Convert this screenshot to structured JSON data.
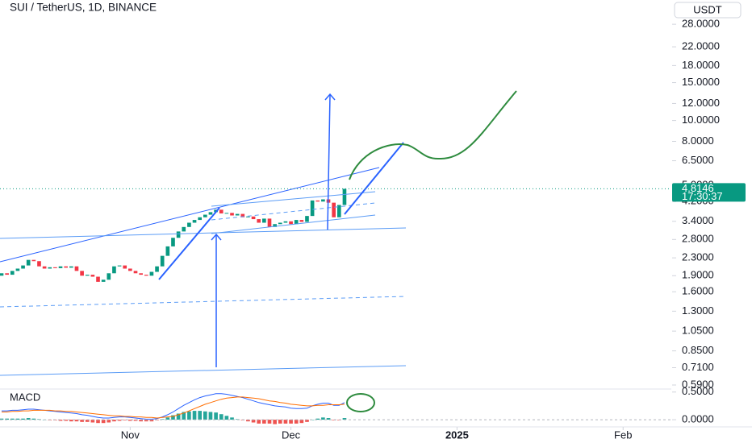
{
  "chart_data": {
    "type": "candlestick",
    "title": "SUI / TetherUS, 1D, BINANCE",
    "currency": "USDT",
    "log_scale": true,
    "up_color": "#089981",
    "down_color": "#f23645",
    "open": [
      1.9,
      1.95,
      1.92,
      2.0,
      2.05,
      2.12,
      2.25,
      2.22,
      2.1,
      2.05,
      2.08,
      2.06,
      2.1,
      2.07,
      2.1,
      2.0,
      1.9,
      1.92,
      1.88,
      1.78,
      1.82,
      1.95,
      2.1,
      2.12,
      2.05,
      2.0,
      1.95,
      1.92,
      1.9,
      1.98,
      2.1,
      2.35,
      2.6,
      2.85,
      3.05,
      3.2,
      3.35,
      3.45,
      3.55,
      3.65,
      3.75,
      3.85,
      3.7,
      3.72,
      3.62,
      3.68,
      3.55,
      3.58,
      3.48,
      3.35,
      3.5,
      3.2,
      3.3,
      3.35,
      3.4,
      3.3,
      3.45,
      3.38,
      3.6,
      4.25,
      4.2,
      4.3,
      4.15,
      3.55,
      4.05
    ],
    "close": [
      1.95,
      1.92,
      2.0,
      2.05,
      2.12,
      2.25,
      2.22,
      2.1,
      2.05,
      2.08,
      2.06,
      2.1,
      2.07,
      2.1,
      2.0,
      1.9,
      1.92,
      1.88,
      1.78,
      1.82,
      1.95,
      2.1,
      2.12,
      2.05,
      2.0,
      1.95,
      1.92,
      1.9,
      1.98,
      2.1,
      2.35,
      2.6,
      2.85,
      3.05,
      3.2,
      3.35,
      3.45,
      3.55,
      3.65,
      3.75,
      3.85,
      3.7,
      3.72,
      3.62,
      3.68,
      3.55,
      3.58,
      3.48,
      3.35,
      3.5,
      3.2,
      3.3,
      3.35,
      3.4,
      3.3,
      3.45,
      3.38,
      3.6,
      4.25,
      4.2,
      4.3,
      4.15,
      3.55,
      4.05,
      4.8146
    ],
    "last_price": 4.8146,
    "countdown": "17:30:37",
    "ylim": [
      0.57,
      36.3
    ],
    "yticks": [
      {
        "value": 28,
        "label": "28.0000"
      },
      {
        "value": 22,
        "label": "22.0000"
      },
      {
        "value": 18,
        "label": "18.0000"
      },
      {
        "value": 15,
        "label": "15.0000"
      },
      {
        "value": 12,
        "label": "12.0000"
      },
      {
        "value": 10,
        "label": "10.0000"
      },
      {
        "value": 8,
        "label": "8.0000"
      },
      {
        "value": 6.5,
        "label": "6.5000"
      },
      {
        "value": 5,
        "label": "5.0000"
      },
      {
        "value": 4.2,
        "label": "4.2000"
      },
      {
        "value": 3.4,
        "label": "3.4000"
      },
      {
        "value": 2.8,
        "label": "2.8000"
      },
      {
        "value": 2.3,
        "label": "2.3000"
      },
      {
        "value": 1.9,
        "label": "1.9000"
      },
      {
        "value": 1.6,
        "label": "1.6000"
      },
      {
        "value": 1.3,
        "label": "1.3000"
      },
      {
        "value": 1.05,
        "label": "1.0500"
      },
      {
        "value": 0.85,
        "label": "0.8500"
      },
      {
        "value": 0.71,
        "label": "0.7100"
      },
      {
        "value": 0.59,
        "label": "0.5900"
      }
    ],
    "xlim": [
      0,
      125
    ],
    "xticks": [
      {
        "value": 24,
        "label": "Nov"
      },
      {
        "value": 54,
        "label": "Dec"
      },
      {
        "value": 85,
        "label": "2025"
      },
      {
        "value": 116,
        "label": "Feb"
      }
    ],
    "macd": {
      "label": "MACD",
      "ylim": [
        -0.13,
        0.54
      ],
      "yticks": [
        {
          "value": 0.5,
          "label": "0.5000"
        },
        {
          "value": 0,
          "label": "0.0000"
        }
      ],
      "macd_color": "#2962ff",
      "signal_color": "#ff6d00",
      "macd": [
        0.16,
        0.16,
        0.17,
        0.17,
        0.18,
        0.19,
        0.19,
        0.18,
        0.17,
        0.16,
        0.15,
        0.14,
        0.13,
        0.12,
        0.11,
        0.09,
        0.08,
        0.06,
        0.04,
        0.03,
        0.03,
        0.04,
        0.05,
        0.05,
        0.04,
        0.03,
        0.02,
        0.01,
        0.01,
        0.02,
        0.05,
        0.09,
        0.14,
        0.2,
        0.26,
        0.31,
        0.36,
        0.4,
        0.43,
        0.45,
        0.47,
        0.47,
        0.46,
        0.44,
        0.42,
        0.4,
        0.37,
        0.34,
        0.31,
        0.29,
        0.27,
        0.25,
        0.24,
        0.23,
        0.21,
        0.2,
        0.2,
        0.21,
        0.25,
        0.28,
        0.3,
        0.3,
        0.26,
        0.26,
        0.31
      ],
      "signal": [
        0.14,
        0.14,
        0.15,
        0.15,
        0.16,
        0.16,
        0.17,
        0.17,
        0.17,
        0.17,
        0.16,
        0.16,
        0.15,
        0.15,
        0.14,
        0.13,
        0.12,
        0.11,
        0.1,
        0.09,
        0.08,
        0.07,
        0.07,
        0.06,
        0.06,
        0.05,
        0.05,
        0.04,
        0.04,
        0.03,
        0.04,
        0.05,
        0.06,
        0.09,
        0.12,
        0.16,
        0.2,
        0.24,
        0.28,
        0.31,
        0.34,
        0.37,
        0.39,
        0.4,
        0.41,
        0.41,
        0.4,
        0.39,
        0.38,
        0.36,
        0.34,
        0.33,
        0.31,
        0.3,
        0.28,
        0.27,
        0.26,
        0.25,
        0.25,
        0.26,
        0.26,
        0.27,
        0.27,
        0.27,
        0.28
      ],
      "histogram": [
        0.02,
        0.02,
        0.02,
        0.02,
        0.02,
        0.03,
        0.02,
        0.01,
        0,
        -0.01,
        -0.01,
        -0.02,
        -0.02,
        -0.03,
        -0.03,
        -0.04,
        -0.04,
        -0.05,
        -0.06,
        -0.06,
        -0.05,
        -0.03,
        -0.02,
        -0.01,
        -0.02,
        -0.02,
        -0.03,
        -0.03,
        -0.03,
        -0.01,
        0.01,
        0.04,
        0.08,
        0.11,
        0.14,
        0.15,
        0.16,
        0.16,
        0.15,
        0.14,
        0.13,
        0.1,
        0.07,
        0.04,
        0.01,
        -0.01,
        -0.03,
        -0.05,
        -0.07,
        -0.07,
        -0.07,
        -0.08,
        -0.07,
        -0.07,
        -0.07,
        -0.07,
        -0.06,
        -0.04,
        0,
        0.02,
        0.04,
        0.03,
        -0.01,
        -0.01,
        0.03
      ]
    }
  }
}
